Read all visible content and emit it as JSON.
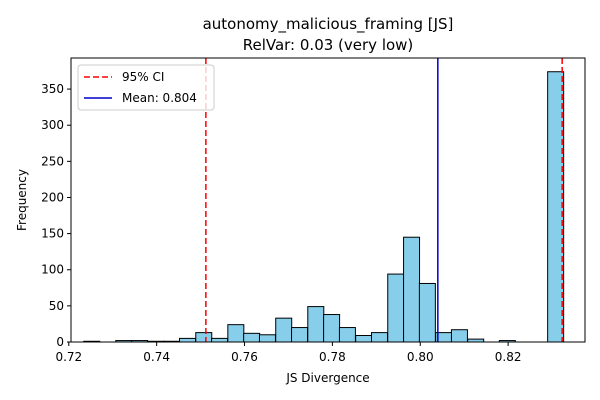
{
  "chart_data": {
    "type": "bar",
    "title": "autonomy_malicious_framing [JS]",
    "subtitle": "RelVar: 0.03 (very low)",
    "xlabel": "JS Divergence",
    "ylabel": "Frequency",
    "xlim": [
      0.7205,
      0.8375
    ],
    "ylim": [
      0,
      393
    ],
    "x_ticks": [
      0.72,
      0.74,
      0.76,
      0.78,
      0.8,
      0.82
    ],
    "x_tick_labels": [
      "0.72",
      "0.74",
      "0.76",
      "0.78",
      "0.80",
      "0.82"
    ],
    "y_ticks": [
      0,
      50,
      100,
      150,
      200,
      250,
      300,
      350
    ],
    "y_tick_labels": [
      "0",
      "50",
      "100",
      "150",
      "200",
      "250",
      "300",
      "350"
    ],
    "bin_width": 0.00364,
    "bin_starts": [
      0.7234,
      0.727,
      0.7307,
      0.7343,
      0.738,
      0.7416,
      0.7452,
      0.7489,
      0.7525,
      0.7562,
      0.7598,
      0.7634,
      0.7671,
      0.7707,
      0.7744,
      0.778,
      0.7816,
      0.7853,
      0.7889,
      0.7926,
      0.7962,
      0.7998,
      0.8035,
      0.8071,
      0.8108,
      0.8144,
      0.818,
      0.8217,
      0.8253,
      0.829
    ],
    "counts": [
      1,
      0,
      2,
      2,
      1,
      1,
      5,
      13,
      5,
      24,
      12,
      10,
      33,
      20,
      49,
      38,
      20,
      9,
      13,
      94,
      145,
      81,
      13,
      17,
      4,
      0,
      2,
      0,
      0,
      374
    ],
    "bar_color": "#87ceeb",
    "bar_edge_color": "#000000",
    "lines": [
      {
        "name": "95% CI",
        "x": 0.7512,
        "color": "#ff0000",
        "style": "dashed"
      },
      {
        "name": "Mean: 0.804",
        "x": 0.804,
        "color": "#0000cc",
        "style": "solid"
      },
      {
        "name": "",
        "x": 0.8323,
        "color": "#ff0000",
        "style": "dashed"
      }
    ],
    "legend": {
      "placement": "upper-left",
      "entries": [
        {
          "label": "95% CI",
          "color": "#ff0000",
          "style": "dashed"
        },
        {
          "label": "Mean: 0.804",
          "color": "#0000cc",
          "style": "solid"
        }
      ]
    },
    "grid": false
  }
}
